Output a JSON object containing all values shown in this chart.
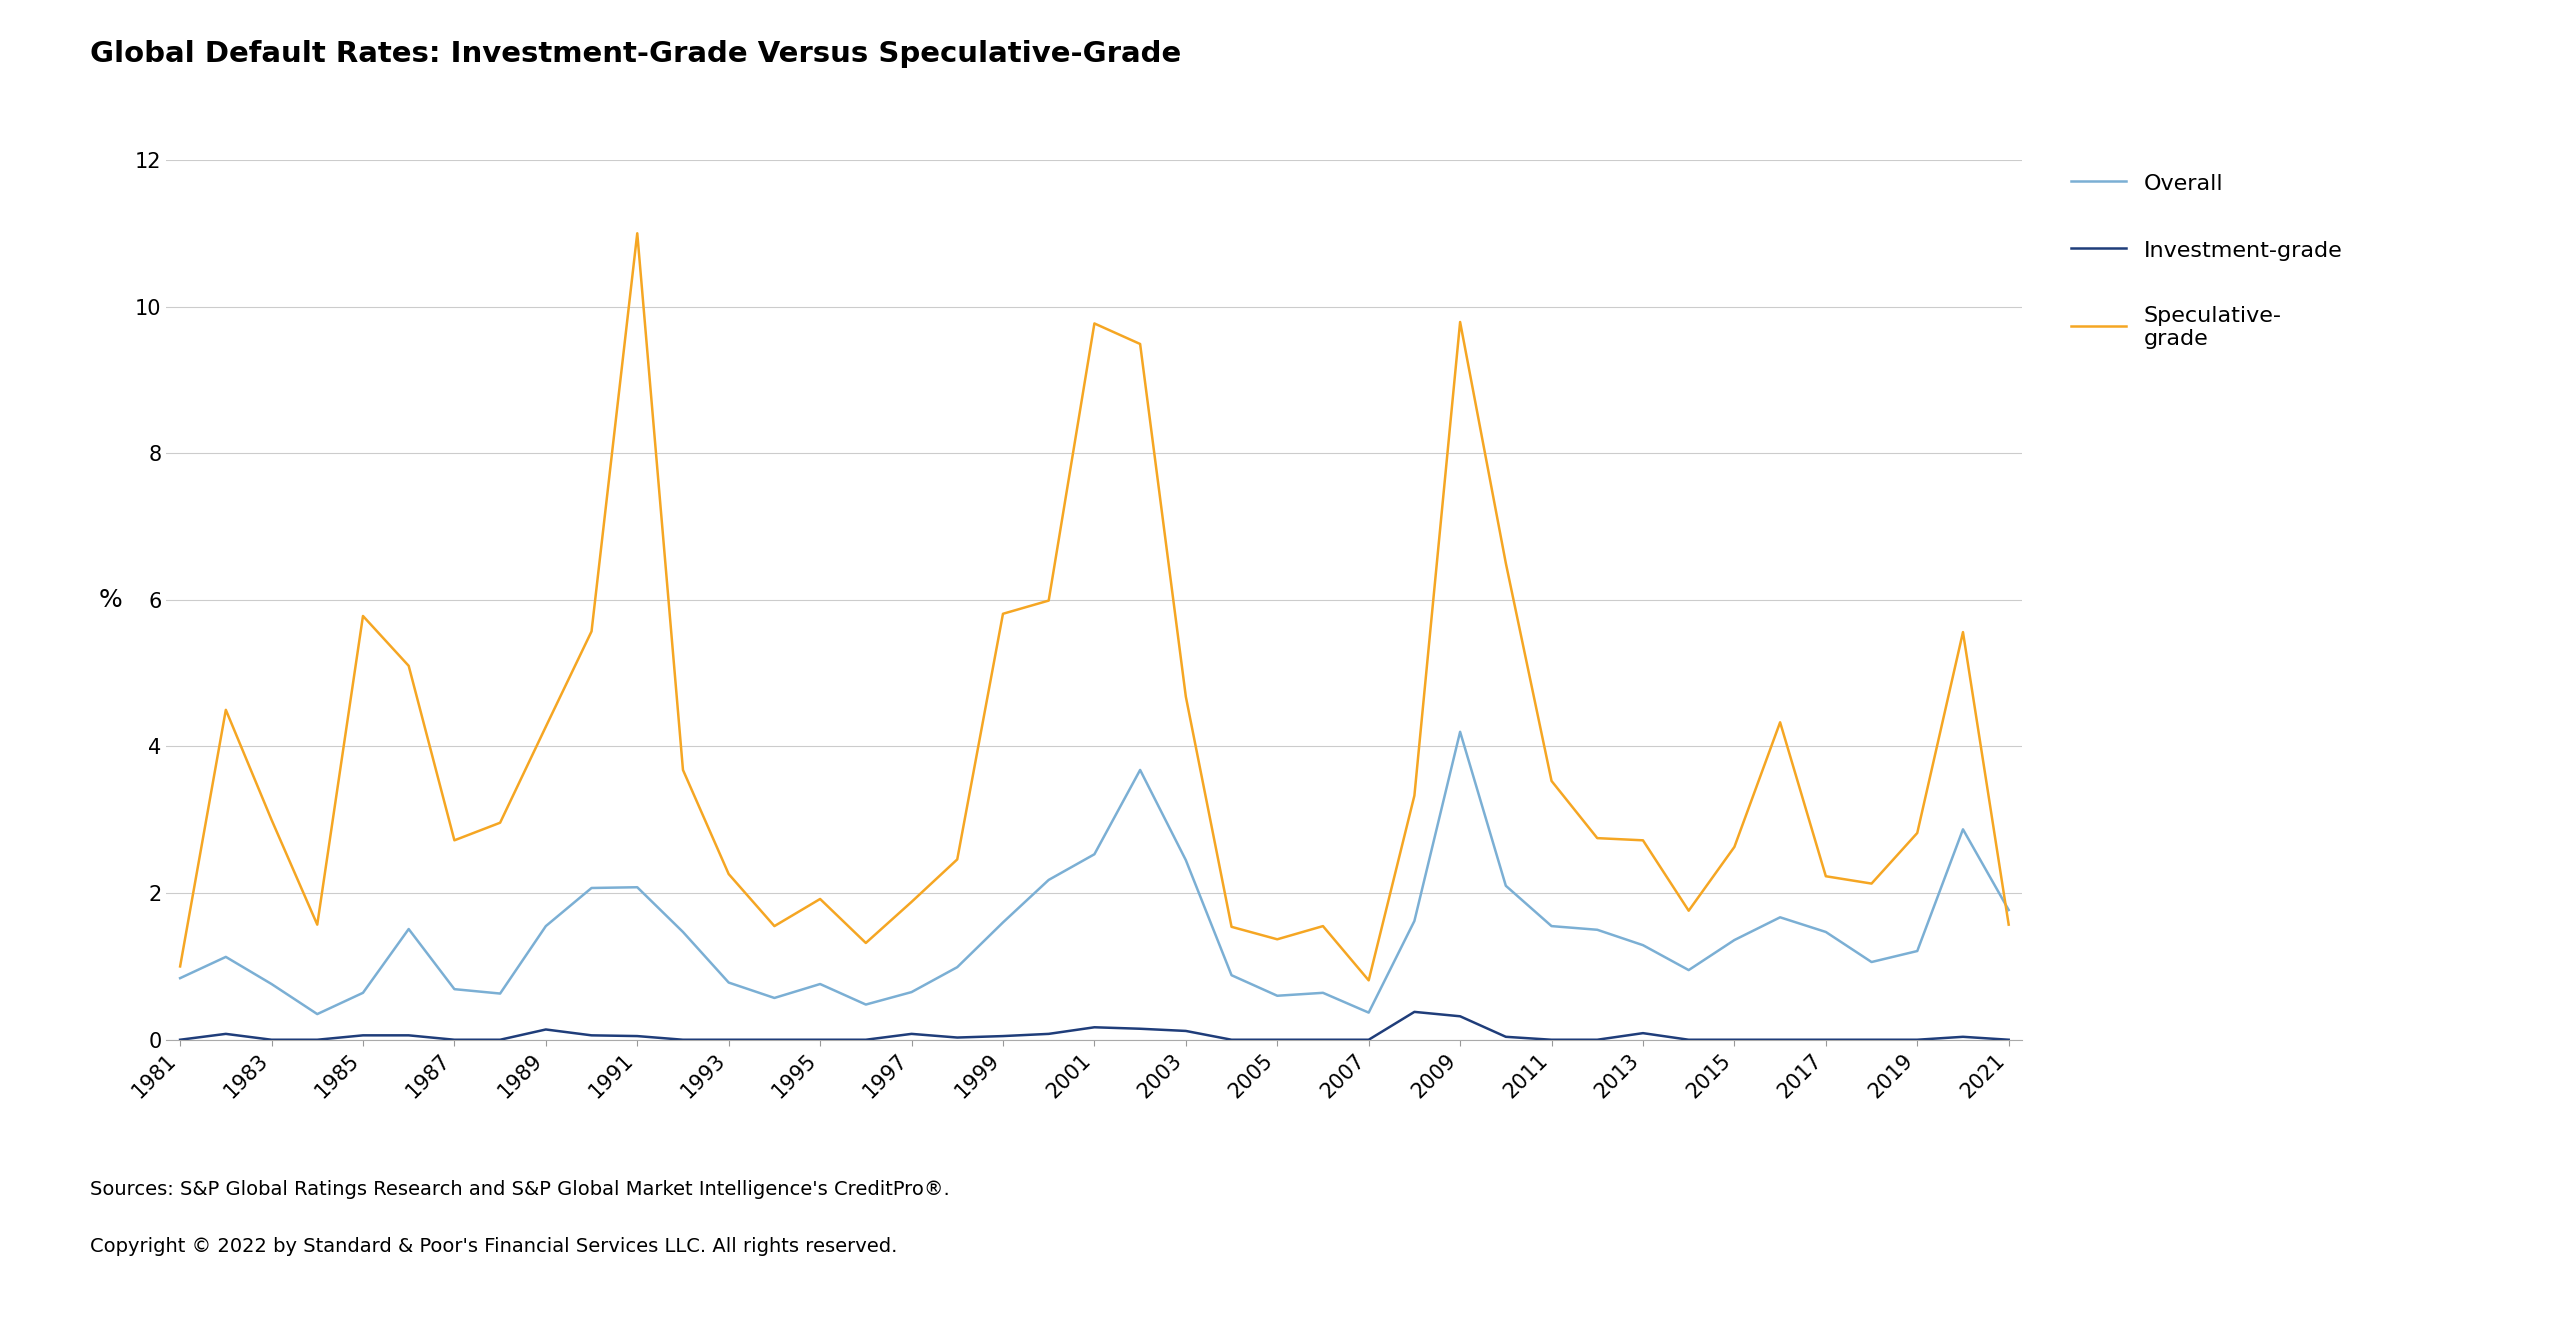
{
  "title": "Global Default Rates: Investment-Grade Versus Speculative-Grade",
  "ylabel": "%",
  "years": [
    1981,
    1982,
    1983,
    1984,
    1985,
    1986,
    1987,
    1988,
    1989,
    1990,
    1991,
    1992,
    1993,
    1994,
    1995,
    1996,
    1997,
    1998,
    1999,
    2000,
    2001,
    2002,
    2003,
    2004,
    2005,
    2006,
    2007,
    2008,
    2009,
    2010,
    2011,
    2012,
    2013,
    2014,
    2015,
    2016,
    2017,
    2018,
    2019,
    2020,
    2021
  ],
  "xtick_labels": [
    "1981",
    "1983",
    "1985",
    "1987",
    "1989",
    "1991",
    "1993",
    "1995",
    "1997",
    "1999",
    "2001",
    "2003",
    "2005",
    "2007",
    "2009",
    "2011",
    "2013",
    "2015",
    "2017",
    "2019",
    "2021"
  ],
  "xtick_positions": [
    1981,
    1983,
    1985,
    1987,
    1989,
    1991,
    1993,
    1995,
    1997,
    1999,
    2001,
    2003,
    2005,
    2007,
    2009,
    2011,
    2013,
    2015,
    2017,
    2019,
    2021
  ],
  "overall": [
    0.84,
    1.13,
    0.76,
    0.35,
    0.64,
    1.51,
    0.69,
    0.63,
    1.55,
    2.07,
    2.08,
    1.47,
    0.78,
    0.57,
    0.76,
    0.48,
    0.65,
    0.99,
    1.6,
    2.18,
    2.53,
    3.68,
    2.45,
    0.88,
    0.6,
    0.64,
    0.37,
    1.62,
    4.2,
    2.1,
    1.55,
    1.5,
    1.29,
    0.95,
    1.36,
    1.67,
    1.47,
    1.06,
    1.21,
    2.87,
    1.77
  ],
  "investment_grade": [
    0.0,
    0.08,
    0.0,
    0.0,
    0.06,
    0.06,
    0.0,
    0.0,
    0.14,
    0.06,
    0.05,
    0.0,
    0.0,
    0.0,
    0.0,
    0.0,
    0.08,
    0.03,
    0.05,
    0.08,
    0.17,
    0.15,
    0.12,
    0.0,
    0.0,
    0.0,
    0.0,
    0.38,
    0.32,
    0.04,
    0.0,
    0.0,
    0.09,
    0.0,
    0.0,
    0.0,
    0.0,
    0.0,
    0.0,
    0.04,
    0.0
  ],
  "speculative_grade": [
    1.0,
    4.5,
    3.0,
    1.57,
    5.78,
    5.1,
    2.72,
    2.96,
    4.27,
    5.57,
    11.0,
    3.68,
    2.26,
    1.55,
    1.92,
    1.32,
    1.88,
    2.46,
    5.81,
    5.99,
    9.77,
    9.49,
    4.68,
    1.54,
    1.37,
    1.55,
    0.81,
    3.33,
    9.79,
    6.5,
    3.53,
    2.75,
    2.72,
    1.76,
    2.63,
    4.33,
    2.23,
    2.13,
    2.82,
    5.56,
    1.57
  ],
  "overall_color": "#7BAFD4",
  "investment_grade_color": "#1F3D7A",
  "speculative_grade_color": "#F5A623",
  "line_width": 1.8,
  "ylim": [
    0,
    12
  ],
  "yticks": [
    0,
    2,
    4,
    6,
    8,
    10,
    12
  ],
  "grid_color": "#cccccc",
  "background_color": "#ffffff",
  "source_text": "Sources: S&P Global Ratings Research and S&P Global Market Intelligence's CreditPro®.",
  "copyright_text": "Copyright © 2022 by Standard & Poor's Financial Services LLC. All rights reserved.",
  "legend_labels": [
    "Overall",
    "Investment-grade",
    "Speculative-\ngrade"
  ],
  "title_fontsize": 21,
  "label_fontsize": 16,
  "tick_fontsize": 15,
  "source_fontsize": 14
}
